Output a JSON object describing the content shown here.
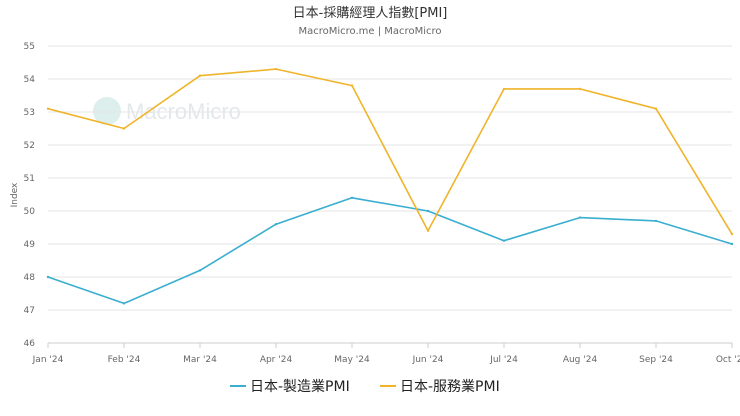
{
  "chart_data": {
    "type": "line",
    "title": "日本-採購經理人指數[PMI]",
    "subtitle": "MacroMicro.me | MacroMicro",
    "watermark": "MacroMicro",
    "ylabel": "Index",
    "xlabel": "",
    "categories": [
      "Jan '24",
      "Feb '24",
      "Mar '24",
      "Apr '24",
      "May '24",
      "Jun '24",
      "Jul '24",
      "Aug '24",
      "Sep '24",
      "Oct '24"
    ],
    "ylim": [
      46,
      55
    ],
    "yticks": [
      46,
      47,
      48,
      49,
      50,
      51,
      52,
      53,
      54,
      55
    ],
    "grid": true,
    "legend_position": "bottom",
    "series": [
      {
        "name": "日本-製造業PMI",
        "color": "#3aaed0",
        "values": [
          48.0,
          47.2,
          48.2,
          49.6,
          50.4,
          50.0,
          49.1,
          49.8,
          49.7,
          49.0
        ]
      },
      {
        "name": "日本-服務業PMI",
        "color": "#f0b42b",
        "values": [
          53.1,
          52.5,
          54.1,
          54.3,
          53.8,
          49.4,
          53.7,
          53.7,
          53.1,
          49.3
        ]
      }
    ]
  }
}
